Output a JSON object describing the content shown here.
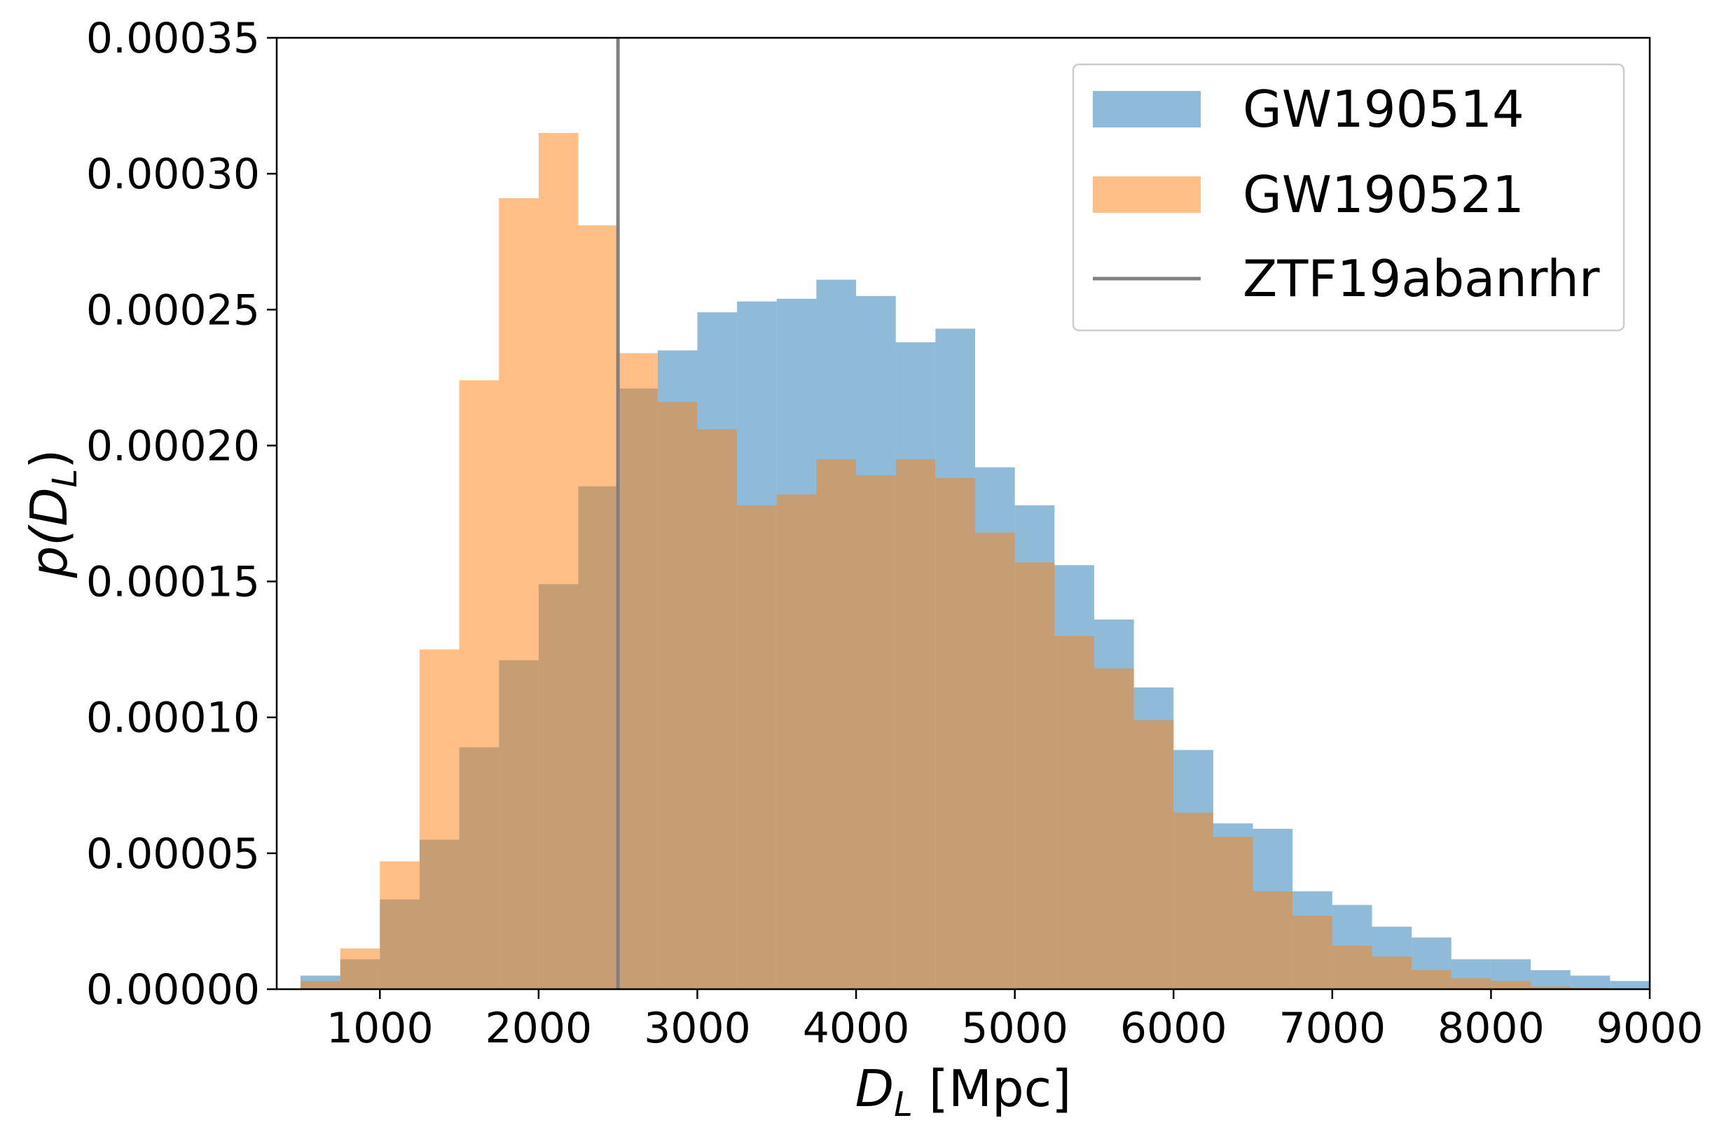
{
  "chart_data": {
    "type": "histogram",
    "xlabel": {
      "main": "D",
      "sub": "L",
      "unit": " [Mpc]"
    },
    "ylabel": {
      "prefix": "p(D",
      "sub": "L",
      "suffix": ")"
    },
    "xlim": [
      350,
      9000
    ],
    "ylim": [
      0,
      0.00035
    ],
    "xticks": [
      1000,
      2000,
      3000,
      4000,
      5000,
      6000,
      7000,
      8000,
      9000
    ],
    "xtick_labels": [
      "1000",
      "2000",
      "3000",
      "4000",
      "5000",
      "6000",
      "7000",
      "8000",
      "9000"
    ],
    "yticks": [
      0,
      5e-05,
      0.0001,
      0.00015,
      0.0002,
      0.00025,
      0.0003,
      0.00035
    ],
    "ytick_labels": [
      "0.00000",
      "0.00005",
      "0.00010",
      "0.00015",
      "0.00020",
      "0.00025",
      "0.00030",
      "0.00035"
    ],
    "bin_edges": [
      500,
      750,
      1000,
      1250,
      1500,
      1750,
      2000,
      2250,
      2500,
      2750,
      3000,
      3250,
      3500,
      3750,
      4000,
      4250,
      4500,
      4750,
      5000,
      5250,
      5500,
      5750,
      6000,
      6250,
      6500,
      6750,
      7000,
      7250,
      7500,
      7750,
      8000,
      8250,
      8500,
      8750,
      9000
    ],
    "series": [
      {
        "name": "GW190514",
        "color": "#1f77b4",
        "opacity": 0.5,
        "values": [
          5e-06,
          1.1e-05,
          3.3e-05,
          5.5e-05,
          8.9e-05,
          0.000121,
          0.000149,
          0.000185,
          0.000221,
          0.000235,
          0.000249,
          0.000253,
          0.000254,
          0.000261,
          0.000255,
          0.000238,
          0.000243,
          0.000192,
          0.000178,
          0.000156,
          0.000136,
          0.000111,
          8.8e-05,
          6.1e-05,
          5.9e-05,
          3.6e-05,
          3.1e-05,
          2.3e-05,
          1.9e-05,
          1.1e-05,
          1.1e-05,
          7e-06,
          5e-06,
          3e-06
        ]
      },
      {
        "name": "GW190521",
        "color": "#ff7f0e",
        "opacity": 0.5,
        "values": [
          3e-06,
          1.5e-05,
          4.7e-05,
          0.000125,
          0.000224,
          0.000291,
          0.000315,
          0.000281,
          0.000234,
          0.000216,
          0.000206,
          0.000178,
          0.000182,
          0.000195,
          0.000189,
          0.000195,
          0.000188,
          0.000168,
          0.000157,
          0.00013,
          0.000118,
          9.9e-05,
          6.5e-05,
          5.6e-05,
          3.6e-05,
          2.7e-05,
          1.6e-05,
          1.2e-05,
          7e-06,
          4e-06,
          3e-06,
          1e-06,
          5e-07,
          3e-07
        ]
      }
    ],
    "vline": {
      "name": "ZTF19abanrhr",
      "x": 2500,
      "color": "#808080"
    },
    "legend": {
      "position": "top-right",
      "entries": [
        "GW190514",
        "GW190521",
        "ZTF19abanrhr"
      ]
    },
    "grid": false
  }
}
